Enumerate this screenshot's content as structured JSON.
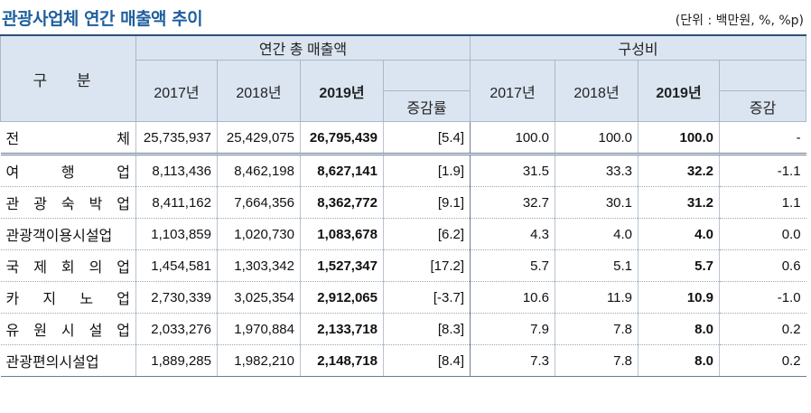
{
  "title": "관광사업체 연간 매출액 추이",
  "unit": "(단위 : 백만원, %, %p)",
  "header": {
    "category": "구 분",
    "group_sales": "연간 총 매출액",
    "group_ratio": "구성비",
    "years": [
      "2017년",
      "2018년",
      "2019년"
    ],
    "change_rate": "증감률",
    "change": "증감"
  },
  "rows": [
    {
      "name": "전체",
      "name_chars": [
        "전",
        "체"
      ],
      "s2017": "25,735,937",
      "s2018": "25,429,075",
      "s2019": "26,795,439",
      "rate": "[5.4]",
      "r2017": "100.0",
      "r2018": "100.0",
      "r2019": "100.0",
      "diff": "-"
    },
    {
      "name": "여행업",
      "name_chars": [
        "여",
        "행",
        "업"
      ],
      "s2017": "8,113,436",
      "s2018": "8,462,198",
      "s2019": "8,627,141",
      "rate": "[1.9]",
      "r2017": "31.5",
      "r2018": "33.3",
      "r2019": "32.2",
      "diff": "-1.1"
    },
    {
      "name": "관광숙박업",
      "name_chars": [
        "관",
        "광",
        "숙",
        "박",
        "업"
      ],
      "s2017": "8,411,162",
      "s2018": "7,664,356",
      "s2019": "8,362,772",
      "rate": "[9.1]",
      "r2017": "32.7",
      "r2018": "30.1",
      "r2019": "31.2",
      "diff": "1.1"
    },
    {
      "name": "관광객이용시설업",
      "name_chars": [
        "관광객이용시설업"
      ],
      "s2017": "1,103,859",
      "s2018": "1,020,730",
      "s2019": "1,083,678",
      "rate": "[6.2]",
      "r2017": "4.3",
      "r2018": "4.0",
      "r2019": "4.0",
      "diff": "0.0"
    },
    {
      "name": "국제회의업",
      "name_chars": [
        "국",
        "제",
        "회",
        "의",
        "업"
      ],
      "s2017": "1,454,581",
      "s2018": "1,303,342",
      "s2019": "1,527,347",
      "rate": "[17.2]",
      "r2017": "5.7",
      "r2018": "5.1",
      "r2019": "5.7",
      "diff": "0.6"
    },
    {
      "name": "카지노업",
      "name_chars": [
        "카",
        "지",
        "노",
        "업"
      ],
      "s2017": "2,730,339",
      "s2018": "3,025,354",
      "s2019": "2,912,065",
      "rate": "[-3.7]",
      "r2017": "10.6",
      "r2018": "11.9",
      "r2019": "10.9",
      "diff": "-1.0"
    },
    {
      "name": "유원시설업",
      "name_chars": [
        "유",
        "원",
        "시",
        "설",
        "업"
      ],
      "s2017": "2,033,276",
      "s2018": "1,970,884",
      "s2019": "2,133,718",
      "rate": "[8.3]",
      "r2017": "7.9",
      "r2018": "7.8",
      "r2019": "8.0",
      "diff": "0.2"
    },
    {
      "name": "관광편의시설업",
      "name_chars": [
        "관광편의시설업"
      ],
      "s2017": "1,889,285",
      "s2018": "1,982,210",
      "s2019": "2,148,718",
      "rate": "[8.4]",
      "r2017": "7.3",
      "r2018": "7.8",
      "r2019": "8.0",
      "diff": "0.2"
    }
  ]
}
